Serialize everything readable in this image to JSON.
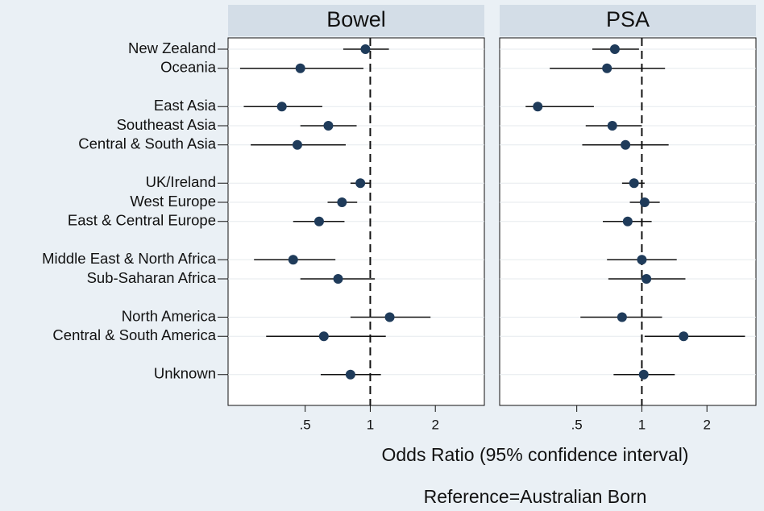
{
  "chart_data": {
    "type": "forest",
    "categories": [
      "New Zealand",
      "Oceania",
      null,
      "East Asia",
      "Southeast Asia",
      "Central & South Asia",
      null,
      "UK/Ireland",
      "West Europe",
      "East  & Central Europe",
      null,
      "Middle East & North Africa",
      "Sub-Saharan Africa",
      null,
      "North America",
      "Central & South America",
      null,
      "Unknown"
    ],
    "series": [
      {
        "name": "Bowel",
        "color": "#1f3b5a",
        "values": [
          0.95,
          0.475,
          null,
          0.39,
          0.64,
          0.46,
          null,
          0.9,
          0.74,
          0.58,
          null,
          0.44,
          0.71,
          null,
          1.23,
          0.61,
          null,
          0.81
        ],
        "lower": [
          0.75,
          0.25,
          null,
          0.26,
          0.475,
          0.28,
          null,
          0.81,
          0.635,
          0.44,
          null,
          0.29,
          0.475,
          null,
          0.81,
          0.33,
          null,
          0.59
        ],
        "upper": [
          1.22,
          0.93,
          null,
          0.6,
          0.865,
          0.77,
          null,
          1.0,
          0.87,
          0.76,
          null,
          0.69,
          1.05,
          null,
          1.9,
          1.18,
          null,
          1.12
        ]
      },
      {
        "name": "PSA",
        "color": "#1f3b5a",
        "values": [
          0.75,
          0.69,
          null,
          0.33,
          0.73,
          0.84,
          null,
          0.92,
          1.03,
          0.86,
          null,
          1.0,
          1.05,
          null,
          0.81,
          1.56,
          null,
          1.02
        ],
        "lower": [
          0.59,
          0.375,
          null,
          0.29,
          0.55,
          0.53,
          null,
          0.81,
          0.88,
          0.66,
          null,
          0.69,
          0.7,
          null,
          0.52,
          1.03,
          null,
          0.74
        ],
        "upper": [
          0.97,
          1.28,
          null,
          0.6,
          1.0,
          1.33,
          null,
          1.03,
          1.21,
          1.11,
          null,
          1.45,
          1.59,
          null,
          1.24,
          3.0,
          null,
          1.42
        ]
      }
    ],
    "xlim": [
      0.22,
      3.37
    ],
    "xticks": [
      {
        "value": 0.5,
        "label": ".5"
      },
      1,
      2
    ],
    "xscale": "log",
    "reference_line": 1,
    "xlabel": "Odds Ratio (95% confidence interval)",
    "note": "Reference=Australian Born"
  }
}
